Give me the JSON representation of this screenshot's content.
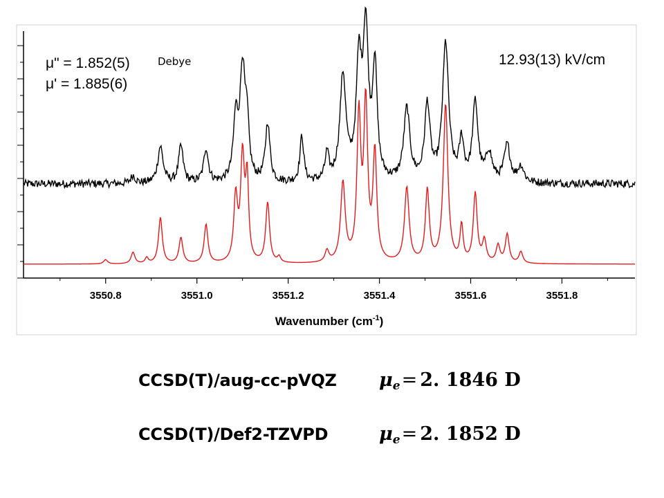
{
  "chart_data": {
    "type": "line",
    "xlabel": "Wavenumber (cm",
    "xlabel_sup": "-1",
    "xlabel_close": ")",
    "xlim": [
      3550.62,
      3551.96
    ],
    "x_ticks": [
      "3550.8",
      "3551.0",
      "3551.2",
      "3551.4",
      "3551.6",
      "3551.8"
    ],
    "grid": false,
    "annotations": {
      "mu_double_prime": "μ\" = 1.852(5)",
      "mu_prime": "μ' = 1.885(6)",
      "unit": "Debye",
      "field": "12.93(13) kV/cm"
    },
    "series": [
      {
        "color": "#000000",
        "style": "experimental",
        "baseline": 0.0,
        "noise": 0.06,
        "peaks": [
          [
            3550.86,
            0.06,
            0.006
          ],
          [
            3550.92,
            0.28,
            0.007
          ],
          [
            3550.965,
            0.28,
            0.006
          ],
          [
            3551.02,
            0.26,
            0.006
          ],
          [
            3551.085,
            0.45,
            0.006
          ],
          [
            3551.1,
            0.85,
            0.007
          ],
          [
            3551.11,
            0.35,
            0.005
          ],
          [
            3551.155,
            0.45,
            0.006
          ],
          [
            3551.23,
            0.35,
            0.005
          ],
          [
            3551.285,
            0.2,
            0.005
          ],
          [
            3551.32,
            0.8,
            0.008
          ],
          [
            3551.355,
            0.85,
            0.007
          ],
          [
            3551.37,
            1.1,
            0.007
          ],
          [
            3551.39,
            0.85,
            0.006
          ],
          [
            3551.46,
            0.55,
            0.008
          ],
          [
            3551.505,
            0.58,
            0.007
          ],
          [
            3551.545,
            1.05,
            0.008
          ],
          [
            3551.58,
            0.3,
            0.006
          ],
          [
            3551.61,
            0.6,
            0.007
          ],
          [
            3551.64,
            0.22,
            0.008
          ],
          [
            3551.68,
            0.28,
            0.008
          ],
          [
            3551.71,
            0.12,
            0.008
          ]
        ]
      },
      {
        "color": "#e31a1c",
        "style": "simulated",
        "baseline": 0.0,
        "noise": 0.0,
        "peaks": [
          [
            3550.8,
            0.03,
            0.005
          ],
          [
            3550.86,
            0.08,
            0.005
          ],
          [
            3550.89,
            0.04,
            0.004
          ],
          [
            3550.92,
            0.32,
            0.005
          ],
          [
            3550.965,
            0.18,
            0.005
          ],
          [
            3551.02,
            0.27,
            0.005
          ],
          [
            3551.085,
            0.45,
            0.005
          ],
          [
            3551.1,
            0.72,
            0.005
          ],
          [
            3551.11,
            0.55,
            0.004
          ],
          [
            3551.155,
            0.42,
            0.005
          ],
          [
            3551.18,
            0.04,
            0.004
          ],
          [
            3551.285,
            0.08,
            0.005
          ],
          [
            3551.32,
            0.55,
            0.006
          ],
          [
            3551.355,
            1.0,
            0.005
          ],
          [
            3551.37,
            1.08,
            0.005
          ],
          [
            3551.39,
            0.75,
            0.005
          ],
          [
            3551.46,
            0.52,
            0.006
          ],
          [
            3551.505,
            0.5,
            0.005
          ],
          [
            3551.545,
            1.1,
            0.006
          ],
          [
            3551.58,
            0.25,
            0.004
          ],
          [
            3551.61,
            0.48,
            0.005
          ],
          [
            3551.63,
            0.15,
            0.005
          ],
          [
            3551.66,
            0.12,
            0.005
          ],
          [
            3551.68,
            0.2,
            0.005
          ],
          [
            3551.71,
            0.08,
            0.005
          ]
        ]
      }
    ]
  },
  "results": [
    {
      "method": "CCSD(T)/aug-cc-pVQZ",
      "mu": "μ",
      "sub": "e",
      "eq": "=",
      "value": "2. 1846 D"
    },
    {
      "method": "CCSD(T)/Def2-TZVPD",
      "mu": "μ",
      "sub": "e",
      "eq": "=",
      "value": "2. 1852 D"
    }
  ]
}
